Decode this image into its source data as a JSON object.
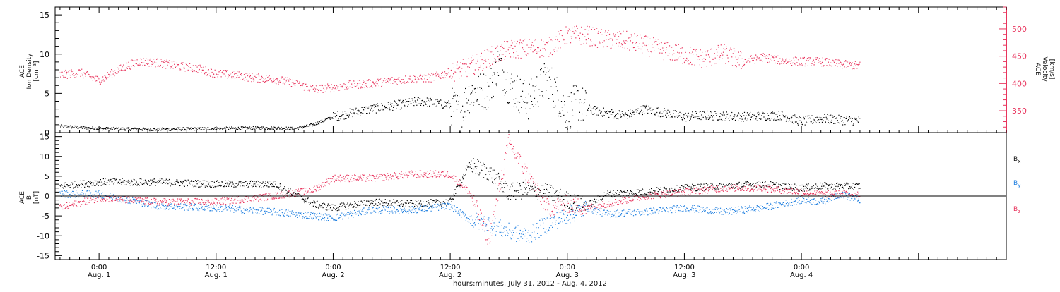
{
  "colors": {
    "black": "#000000",
    "pink": "#e8335c",
    "blue": "#1f7fe0",
    "axis": "#000000"
  },
  "chart_data": [
    {
      "type": "scatter",
      "panel": "top",
      "left_axis": {
        "label_lines": [
          "ACE",
          "Ion Density",
          "[cm⁻³]"
        ],
        "ylim": [
          0,
          16
        ],
        "ticks": [
          0,
          5,
          10,
          15
        ]
      },
      "right_axis": {
        "label_lines": [
          "ACE",
          "Velocity",
          "[km/s]"
        ],
        "ylim": [
          310,
          540
        ],
        "ticks": [
          350,
          400,
          450,
          500
        ]
      },
      "series": [
        {
          "axis": "left",
          "color": "#000000",
          "x": [
            -4,
            0,
            6,
            12,
            18,
            20,
            22,
            24,
            27,
            30,
            33,
            36,
            37,
            38,
            40,
            41,
            42,
            44,
            46,
            48,
            49,
            50,
            52,
            54,
            56,
            58,
            60,
            62,
            66,
            70,
            72,
            74,
            76,
            78
          ],
          "y": [
            0.8,
            0.5,
            0.4,
            0.5,
            0.6,
            0.5,
            1.0,
            2.0,
            2.8,
            3.4,
            4.0,
            3.5,
            2.5,
            5.0,
            5.5,
            9.0,
            6.0,
            4.0,
            7.0,
            2.5,
            4.0,
            3.0,
            2.5,
            2.2,
            3.0,
            2.5,
            2.0,
            2.2,
            2.0,
            2.2,
            1.4,
            1.8,
            1.6,
            1.5
          ]
        },
        {
          "axis": "right",
          "color": "#e8335c",
          "x": [
            -4,
            -2,
            0,
            2,
            4,
            6,
            8,
            10,
            12,
            14,
            16,
            18,
            20,
            22,
            24,
            26,
            28,
            30,
            32,
            34,
            36,
            38,
            40,
            42,
            44,
            46,
            48,
            50,
            52,
            54,
            56,
            58,
            60,
            62,
            64,
            66,
            68,
            70,
            72,
            74,
            76,
            78
          ],
          "y": [
            415,
            420,
            405,
            425,
            440,
            438,
            432,
            428,
            418,
            415,
            410,
            408,
            400,
            390,
            392,
            398,
            400,
            405,
            408,
            410,
            420,
            430,
            448,
            462,
            465,
            465,
            488,
            488,
            480,
            478,
            470,
            460,
            452,
            445,
            455,
            440,
            448,
            442,
            440,
            440,
            435,
            432
          ]
        }
      ]
    },
    {
      "type": "scatter",
      "panel": "bottom",
      "left_axis": {
        "label_lines": [
          "ACE",
          "B",
          "[nT]"
        ],
        "ylim": [
          -16,
          16
        ],
        "ticks": [
          -15,
          -10,
          -5,
          0,
          5,
          10,
          15
        ]
      },
      "legend": [
        "Bx",
        "By",
        "Bz"
      ],
      "series": [
        {
          "name": "Bx",
          "color": "#000000",
          "x": [
            -4,
            0,
            6,
            12,
            18,
            22,
            24,
            28,
            32,
            36,
            38,
            40,
            42,
            44,
            46,
            48,
            50,
            52,
            56,
            60,
            64,
            68,
            70,
            72,
            74,
            76,
            78
          ],
          "y": [
            2.5,
            3.5,
            3.5,
            3.0,
            3.0,
            -2.0,
            -3.0,
            -1.5,
            -2.0,
            -1.5,
            8.0,
            6.0,
            1.0,
            1.5,
            1.0,
            -1.0,
            -2.5,
            0.5,
            1.0,
            2.0,
            2.5,
            3.0,
            2.5,
            2.0,
            2.5,
            2.5,
            2.5
          ]
        },
        {
          "name": "By",
          "color": "#1f7fe0",
          "x": [
            -4,
            0,
            6,
            12,
            18,
            22,
            24,
            28,
            32,
            36,
            38,
            40,
            42,
            44,
            46,
            48,
            50,
            52,
            56,
            60,
            64,
            68,
            70,
            72,
            74,
            76,
            78
          ],
          "y": [
            0.5,
            0.5,
            -2.5,
            -3.0,
            -4.0,
            -5.0,
            -5.5,
            -3.5,
            -3.5,
            -2.5,
            -6.0,
            -7.0,
            -9.0,
            -10.0,
            -7.0,
            -5.0,
            -3.0,
            -4.5,
            -4.0,
            -3.0,
            -4.0,
            -3.0,
            -2.0,
            -1.0,
            -1.5,
            0.5,
            -1.0
          ]
        },
        {
          "name": "Bz",
          "color": "#e8335c",
          "x": [
            -4,
            0,
            6,
            12,
            18,
            22,
            24,
            28,
            32,
            36,
            38,
            40,
            42,
            44,
            46,
            48,
            50,
            52,
            56,
            60,
            64,
            68,
            70,
            72,
            74,
            76,
            78
          ],
          "y": [
            -3.0,
            -0.5,
            -1.5,
            -1.5,
            0.0,
            1.5,
            4.5,
            4.5,
            5.5,
            5.5,
            1.0,
            -11.0,
            13.5,
            5.0,
            -3.0,
            -2.0,
            -3.0,
            -2.0,
            0.0,
            1.0,
            2.0,
            2.0,
            1.5,
            1.0,
            0.5,
            0.5,
            0.5
          ]
        }
      ]
    }
  ],
  "x_axis": {
    "xlim": [
      -4.5,
      93
    ],
    "ticks": [
      {
        "hour": 0,
        "time": "0:00",
        "date": "Aug. 1"
      },
      {
        "hour": 12,
        "time": "12:00",
        "date": "Aug. 1"
      },
      {
        "hour": 24,
        "time": "0:00",
        "date": "Aug. 2"
      },
      {
        "hour": 36,
        "time": "12:00",
        "date": "Aug. 2"
      },
      {
        "hour": 48,
        "time": "0:00",
        "date": "Aug. 3"
      },
      {
        "hour": 60,
        "time": "12:00",
        "date": "Aug. 3"
      },
      {
        "hour": 72,
        "time": "0:00",
        "date": "Aug. 4"
      }
    ],
    "label": "hours:minutes, July 31, 2012 - Aug.  4, 2012"
  },
  "text": {
    "legend_bx_main": "B",
    "legend_bx_sub": "x",
    "legend_by_main": "B",
    "legend_by_sub": "y",
    "legend_bz_main": "B",
    "legend_bz_sub": "z"
  }
}
